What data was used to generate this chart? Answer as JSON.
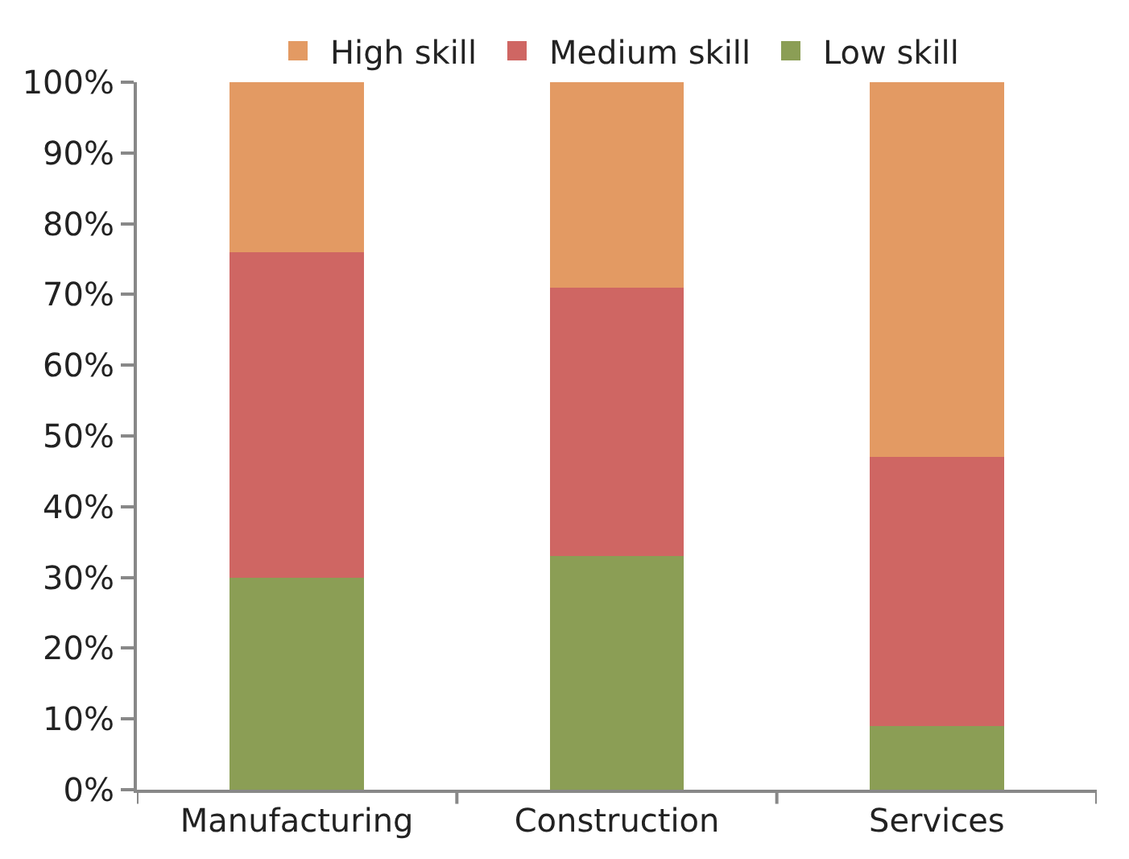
{
  "chart_data": {
    "type": "bar",
    "stacked": true,
    "categories": [
      "Manufacturing",
      "Construction",
      "Services"
    ],
    "series": [
      {
        "name": "Low skill",
        "color": "#8b9e55",
        "values": [
          30,
          33,
          9
        ]
      },
      {
        "name": "Medium skill",
        "color": "#cf6663",
        "values": [
          46,
          38,
          38
        ]
      },
      {
        "name": "High skill",
        "color": "#e39a63",
        "values": [
          24,
          29,
          53
        ]
      }
    ],
    "ylim": [
      0,
      100
    ],
    "yticks": [
      {
        "value": 0,
        "label": "0%"
      },
      {
        "value": 10,
        "label": "10%"
      },
      {
        "value": 20,
        "label": "20%"
      },
      {
        "value": 30,
        "label": "30%"
      },
      {
        "value": 40,
        "label": "40%"
      },
      {
        "value": 50,
        "label": "50%"
      },
      {
        "value": 60,
        "label": "60%"
      },
      {
        "value": 70,
        "label": "70%"
      },
      {
        "value": 80,
        "label": "80%"
      },
      {
        "value": 90,
        "label": "90%"
      },
      {
        "value": 100,
        "label": "100%"
      }
    ],
    "legend": "top"
  }
}
